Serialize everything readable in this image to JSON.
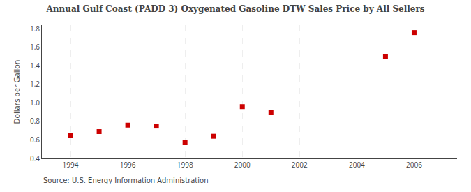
{
  "chart_data": {
    "type": "scatter",
    "title": "Annual Gulf Coast (PADD 3) Oxygenated Gasoline DTW Sales Price by All Sellers",
    "ylabel": "Dollars per Gallon",
    "annotations": [
      "Source: U.S. Energy Information Administration"
    ],
    "x": [
      1994,
      1995,
      1996,
      1997,
      1998,
      1999,
      2000,
      2001,
      2005,
      2006
    ],
    "values": [
      0.65,
      0.69,
      0.76,
      0.75,
      0.57,
      0.64,
      0.96,
      0.9,
      1.5,
      1.76
    ],
    "color": "#cc0000",
    "marker": "square",
    "xlim": [
      1993.0,
      2007.5
    ],
    "ylim": [
      0.4,
      1.84
    ],
    "xticks": [
      1994,
      1996,
      1998,
      2000,
      2002,
      2004,
      2006
    ],
    "yticks": [
      0.4,
      0.6,
      0.8,
      {
        "value": 1.0,
        "label": "1.0"
      },
      1.2,
      1.4,
      1.6,
      1.8
    ],
    "grid": true
  }
}
